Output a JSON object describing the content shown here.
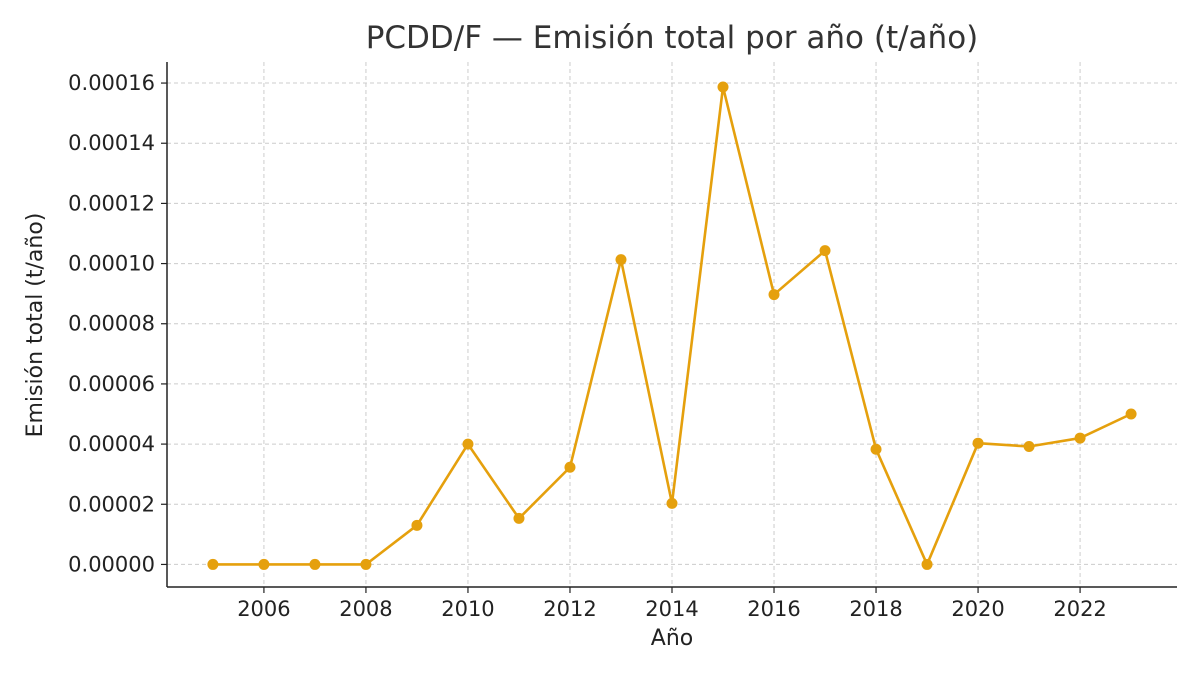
{
  "chart_data": {
    "type": "line",
    "title": "PCDD/F — Emisión total por año (t/año)",
    "xlabel": "Año",
    "ylabel": "Emisión total (t/año)",
    "xlim": [
      2004.1,
      2023.9
    ],
    "ylim": [
      -7.5e-06,
      0.000167
    ],
    "x_ticks": [
      2006,
      2008,
      2010,
      2012,
      2014,
      2016,
      2018,
      2020,
      2022
    ],
    "x_tick_labels": [
      "2006",
      "2008",
      "2010",
      "2012",
      "2014",
      "2016",
      "2018",
      "2020",
      "2022"
    ],
    "y_ticks": [
      0,
      2e-05,
      4e-05,
      6e-05,
      8e-05,
      0.0001,
      0.00012,
      0.00014,
      0.00016
    ],
    "y_tick_labels": [
      "0.00000",
      "0.00002",
      "0.00004",
      "0.00006",
      "0.00008",
      "0.00010",
      "0.00012",
      "0.00014",
      "0.00016"
    ],
    "grid": true,
    "color": "#E5A00D",
    "series": [
      {
        "x": [
          2005,
          2006,
          2007,
          2008,
          2009,
          2010,
          2011,
          2012,
          2013,
          2014,
          2015,
          2016,
          2017,
          2018,
          2019,
          2020,
          2021,
          2022,
          2023
        ],
        "values": [
          0.0,
          0.0,
          0.0,
          0.0,
          1.3e-05,
          4e-05,
          1.53e-05,
          3.23e-05,
          0.0001013,
          2.03e-05,
          0.0001587,
          8.97e-05,
          0.0001043,
          3.83e-05,
          0.0,
          4.03e-05,
          3.92e-05,
          4.2e-05,
          5e-05
        ]
      }
    ]
  }
}
